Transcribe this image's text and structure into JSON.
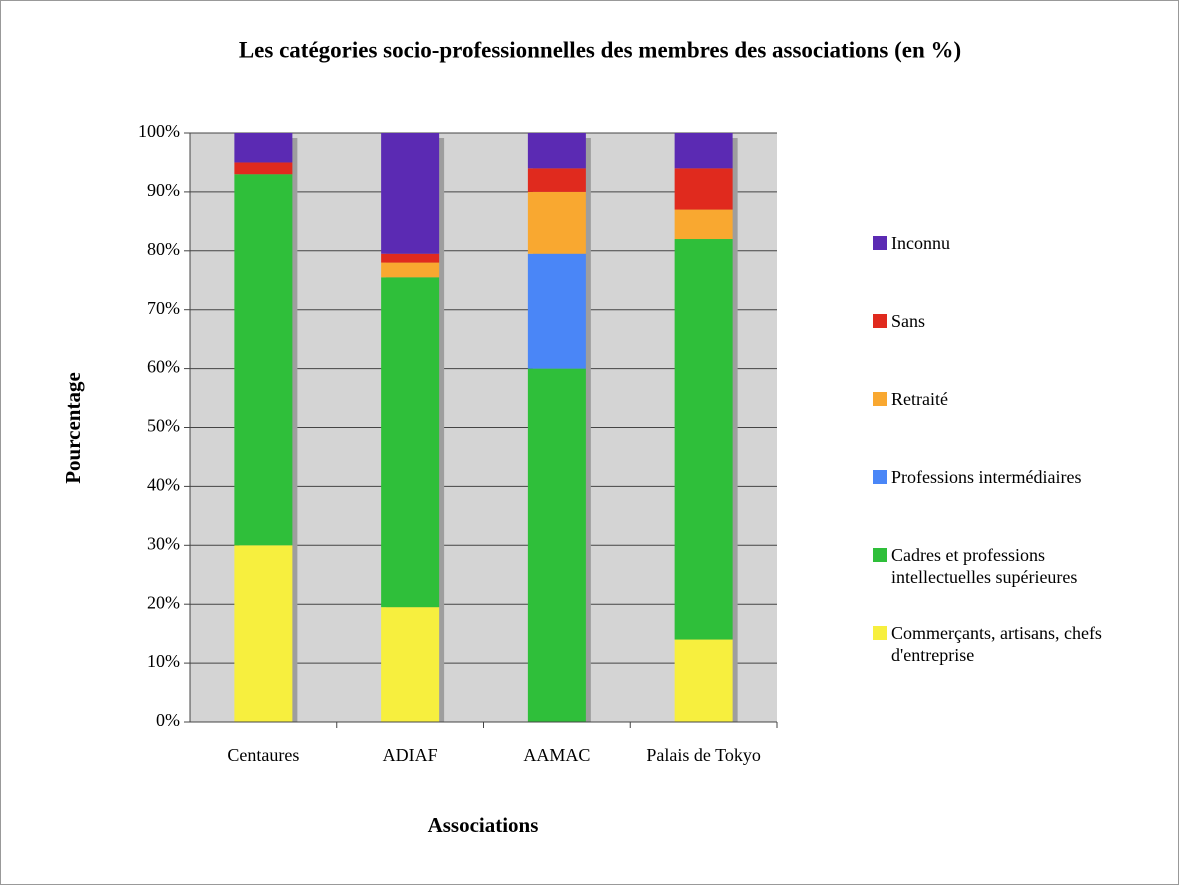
{
  "chart_data": {
    "type": "stacked_bar",
    "title": "Les catégories socio-professionnelles des membres des associations (en %)",
    "x_label": "Associations",
    "y_label": "Pourcentage",
    "categories": [
      "Centaures",
      "ADIAF",
      "AAMAC",
      "Palais de Tokyo"
    ],
    "series": [
      {
        "name": "Commerçants, artisans, chefs d'entreprise",
        "color": "#f7ef3e",
        "values": [
          30,
          19.5,
          0,
          14
        ]
      },
      {
        "name": "Cadres et professions intellectuelles supérieures",
        "color": "#2fbf3a",
        "values": [
          63,
          56,
          60,
          68
        ]
      },
      {
        "name": "Professions intermédiaires",
        "color": "#4a86f7",
        "values": [
          0,
          0,
          19.5,
          0
        ]
      },
      {
        "name": "Retraité",
        "color": "#f9a830",
        "values": [
          0,
          2.5,
          10.5,
          5
        ]
      },
      {
        "name": "Sans",
        "color": "#e02a1e",
        "values": [
          2,
          1.5,
          4,
          7
        ]
      },
      {
        "name": "Inconnu",
        "color": "#5b2ab3",
        "values": [
          5,
          20.5,
          6,
          6
        ]
      }
    ],
    "ylim": [
      0,
      100
    ],
    "yticks": [
      {
        "value": 0,
        "label": "0%"
      },
      {
        "value": 10,
        "label": "10%"
      },
      {
        "value": 20,
        "label": "20%"
      },
      {
        "value": 30,
        "label": "30%"
      },
      {
        "value": 40,
        "label": "40%"
      },
      {
        "value": 50,
        "label": "50%"
      },
      {
        "value": 60,
        "label": "60%"
      },
      {
        "value": 70,
        "label": "70%"
      },
      {
        "value": 80,
        "label": "80%"
      },
      {
        "value": 90,
        "label": "90%"
      },
      {
        "value": 100,
        "label": "100%"
      }
    ],
    "grid": true
  }
}
